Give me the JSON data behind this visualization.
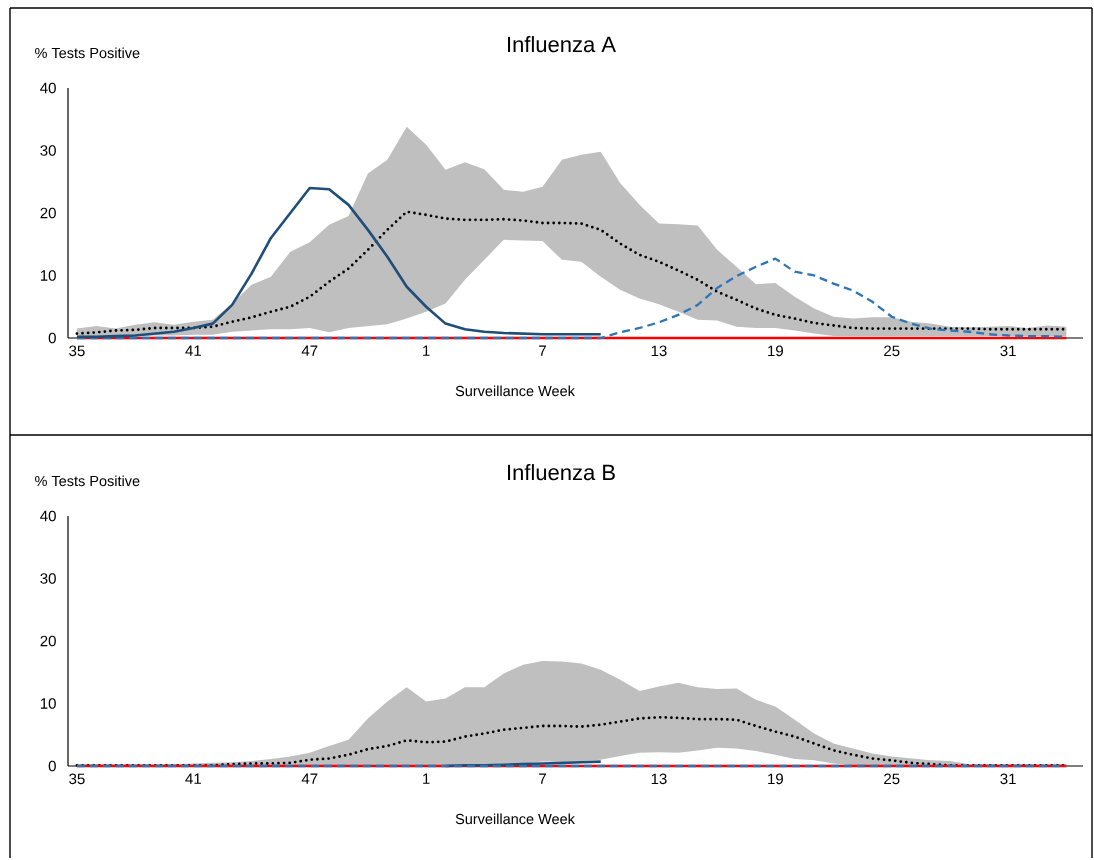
{
  "chart_data": [
    {
      "type": "line",
      "title": "Influenza A",
      "xlabel": "Surveillance Week",
      "ylabel": "% Tests Positive",
      "categories": [
        "35",
        null,
        null,
        null,
        null,
        null,
        "41",
        null,
        null,
        null,
        null,
        null,
        "47",
        null,
        null,
        null,
        null,
        null,
        "1",
        null,
        null,
        null,
        null,
        null,
        "7",
        null,
        null,
        null,
        null,
        null,
        "13",
        null,
        null,
        null,
        null,
        null,
        "19",
        null,
        null,
        null,
        null,
        null,
        "25",
        null,
        null,
        null,
        null,
        null,
        "31",
        null,
        null,
        null
      ],
      "ylim": [
        0,
        40
      ],
      "yticks": [
        0,
        10,
        20,
        30,
        40
      ],
      "series": [
        {
          "color": "#000000",
          "line_style": "dotted",
          "values": [
            0.7,
            0.9,
            1.2,
            1.3,
            1.6,
            1.6,
            1.6,
            1.8,
            2.6,
            3.3,
            4.2,
            5.0,
            6.6,
            9.0,
            11.1,
            14.1,
            17.3,
            20.2,
            19.7,
            19.1,
            18.9,
            18.9,
            19.0,
            18.8,
            18.4,
            18.4,
            18.3,
            17.3,
            15.1,
            13.3,
            12.2,
            10.8,
            9.3,
            7.4,
            6.1,
            4.7,
            3.7,
            3.1,
            2.4,
            2.0,
            1.6,
            1.5,
            1.5,
            1.5,
            1.5,
            1.5,
            1.5,
            1.4,
            1.4,
            1.4,
            1.4,
            1.4
          ],
          "upper": [
            1.5,
            1.9,
            1.5,
            2.1,
            2.5,
            2.1,
            2.6,
            2.9,
            5.5,
            8.5,
            9.8,
            13.8,
            15.3,
            18.1,
            19.5,
            26.3,
            28.5,
            33.8,
            30.9,
            26.9,
            28.1,
            27,
            23.7,
            23.4,
            24.2,
            28.5,
            29.3,
            29.8,
            24.8,
            21.3,
            18.3,
            18.2,
            18,
            14.1,
            11.4,
            8.6,
            8.8,
            6.6,
            4.7,
            3.4,
            3.1,
            3.3,
            3.3,
            2.6,
            2.3,
            1.8,
            1.7,
            1.8,
            1.9,
            1.6,
            2.0,
            1.8
          ],
          "lower": [
            0.2,
            0.2,
            0.3,
            0.3,
            0.4,
            0.4,
            0.5,
            0.5,
            1.0,
            1.2,
            1.4,
            1.4,
            1.6,
            0.9,
            1.6,
            1.9,
            2.2,
            3.1,
            4.2,
            5.5,
            9.3,
            12.5,
            15.7,
            15.6,
            15.5,
            12.5,
            12.2,
            9.8,
            7.7,
            6.3,
            5.4,
            4.2,
            2.9,
            2.8,
            1.8,
            1.6,
            1.6,
            1.2,
            0.7,
            0.3,
            0.3,
            0.3,
            0.3,
            0.3,
            0.3,
            0.3,
            0.3,
            0.3,
            0.3,
            0.3,
            0.3,
            0.3
          ]
        },
        {
          "color": "#ff0000",
          "line_style": "solid",
          "values": [
            0,
            0,
            0,
            0,
            0,
            0,
            0,
            0,
            0,
            0,
            0,
            0,
            0,
            0,
            0,
            0,
            0,
            0,
            0,
            0,
            0,
            0,
            0,
            0,
            0,
            0,
            0,
            0,
            0,
            0,
            0,
            0,
            0,
            0,
            0,
            0,
            0,
            0,
            0,
            0,
            0,
            0,
            0,
            0,
            0,
            0,
            0,
            0,
            0,
            0,
            0,
            0
          ]
        },
        {
          "color": "#2e75b6",
          "line_style": "dashed",
          "values": [
            0,
            0,
            0,
            0,
            0,
            0,
            0,
            0,
            0,
            0,
            0,
            0,
            0,
            0,
            0,
            0,
            0,
            0,
            0,
            0,
            0,
            0,
            0,
            0,
            0,
            0,
            0,
            0,
            0.9,
            1.6,
            2.5,
            3.7,
            5.3,
            8.0,
            9.9,
            11.4,
            12.7,
            10.6,
            10.0,
            8.7,
            7.6,
            5.8,
            3.4,
            2.3,
            1.5,
            1.2,
            1.0,
            0.6,
            0.4,
            0.3,
            0.3,
            0.2
          ]
        },
        {
          "color": "#1f4e79",
          "line_style": "solid",
          "values": [
            0.2,
            0.2,
            0.3,
            0.4,
            0.7,
            1.0,
            1.6,
            2.3,
            5.3,
            10.3,
            16.0,
            20.0,
            24.0,
            23.8,
            21.3,
            17.3,
            13.0,
            8.2,
            5.0,
            2.3,
            1.4,
            1.0,
            0.8,
            0.7,
            0.6,
            0.6,
            0.6,
            0.6,
            null,
            null,
            null,
            null,
            null,
            null,
            null,
            null,
            null,
            null,
            null,
            null,
            null,
            null,
            null,
            null,
            null,
            null,
            null,
            null,
            null,
            null,
            null,
            null
          ]
        }
      ]
    },
    {
      "type": "line",
      "title": "Influenza B",
      "xlabel": "Surveillance Week",
      "ylabel": "% Tests Positive",
      "categories": [
        "35",
        null,
        null,
        null,
        null,
        null,
        "41",
        null,
        null,
        null,
        null,
        null,
        "47",
        null,
        null,
        null,
        null,
        null,
        "1",
        null,
        null,
        null,
        null,
        null,
        "7",
        null,
        null,
        null,
        null,
        null,
        "13",
        null,
        null,
        null,
        null,
        null,
        "19",
        null,
        null,
        null,
        null,
        null,
        "25",
        null,
        null,
        null,
        null,
        null,
        "31",
        null,
        null,
        null
      ],
      "ylim": [
        0,
        40
      ],
      "yticks": [
        0,
        10,
        20,
        30,
        40
      ],
      "series": [
        {
          "color": "#000000",
          "line_style": "dotted",
          "values": [
            0.1,
            0.1,
            0.1,
            0.1,
            0.1,
            0.1,
            0.1,
            0.1,
            0.3,
            0.4,
            0.4,
            0.5,
            1.0,
            1.2,
            1.8,
            2.7,
            3.2,
            4.1,
            3.8,
            3.9,
            4.7,
            5.2,
            5.8,
            6.1,
            6.4,
            6.4,
            6.3,
            6.6,
            7.1,
            7.6,
            7.8,
            7.7,
            7.5,
            7.5,
            7.4,
            6.4,
            5.5,
            4.7,
            3.6,
            2.5,
            1.8,
            1.2,
            0.9,
            0.5,
            0.3,
            0.1,
            0.1,
            0.1,
            0.1,
            0.1,
            0.1,
            0.1
          ],
          "upper": [
            0.3,
            0.3,
            0.3,
            0.3,
            0.3,
            0.3,
            0.4,
            0.5,
            0.6,
            0.8,
            1.1,
            1.5,
            2.1,
            3.2,
            4.2,
            7.6,
            10.3,
            12.6,
            10.3,
            10.8,
            12.6,
            12.6,
            14.8,
            16.2,
            16.8,
            16.7,
            16.4,
            15.4,
            13.8,
            12.0,
            12.7,
            13.3,
            12.6,
            12.3,
            12.4,
            10.6,
            9.5,
            7.4,
            5.2,
            3.6,
            2.8,
            2.0,
            1.5,
            1.2,
            0.9,
            0.8,
            0.3,
            0.3,
            0.3,
            0.3,
            0.3,
            0.3
          ],
          "lower": [
            0,
            0,
            0,
            0,
            0,
            0,
            0,
            0,
            0,
            0,
            0,
            0,
            0,
            0,
            0,
            0,
            0,
            0,
            0,
            0,
            0.2,
            0.2,
            0.4,
            0.4,
            0.7,
            0.7,
            0.8,
            1.0,
            1.6,
            2.1,
            2.2,
            2.1,
            2.5,
            2.9,
            2.8,
            2.4,
            1.8,
            1.1,
            0.9,
            0.4,
            0.1,
            0.1,
            0.1,
            0.1,
            0.1,
            0.1,
            0.1,
            0.1,
            0.1,
            0.1,
            0.1,
            0.1
          ]
        },
        {
          "color": "#ff0000",
          "line_style": "solid",
          "values": [
            0,
            0,
            0,
            0,
            0,
            0,
            0,
            0,
            0,
            0,
            0,
            0,
            0,
            0,
            0,
            0,
            0,
            0,
            0,
            0,
            0,
            0,
            0,
            0,
            0,
            0,
            0,
            0,
            0,
            0,
            0,
            0,
            0,
            0,
            0,
            0,
            0,
            0,
            0,
            0,
            0,
            0,
            0,
            0,
            0,
            0,
            0,
            0,
            0,
            0,
            0,
            0
          ]
        },
        {
          "color": "#1f4e79",
          "line_style": "solid",
          "values": [
            null,
            null,
            null,
            null,
            null,
            null,
            null,
            null,
            null,
            null,
            null,
            null,
            null,
            null,
            null,
            null,
            null,
            null,
            null,
            0,
            0.1,
            0.1,
            0.2,
            0.3,
            0.4,
            0.5,
            0.6,
            0.7,
            null,
            null,
            null,
            null,
            null,
            null,
            null,
            null,
            null,
            null,
            null,
            null,
            null,
            null,
            null,
            null,
            null,
            null,
            null,
            null,
            null,
            null,
            null,
            null
          ]
        },
        {
          "color": "#2e75b6",
          "line_style": "dashed",
          "values": [
            0,
            0,
            0,
            0,
            0,
            0,
            0,
            0,
            0,
            0,
            0,
            0,
            0,
            0,
            0,
            0,
            0,
            0,
            0,
            0,
            0,
            0,
            0,
            0,
            0,
            0,
            0,
            0,
            0,
            0,
            0,
            0,
            0,
            0,
            0,
            0,
            0,
            0,
            0,
            0,
            0,
            0,
            0,
            0,
            0,
            0,
            0,
            0,
            0,
            0,
            0,
            0
          ]
        }
      ]
    }
  ]
}
